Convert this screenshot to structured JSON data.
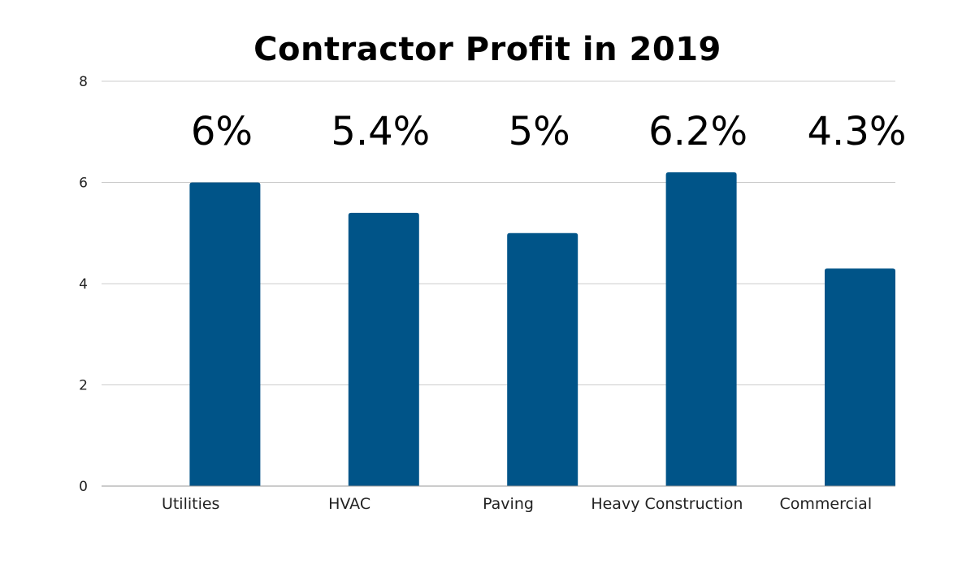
{
  "chart_data": {
    "type": "bar",
    "title": "Contractor Profit in 2019",
    "xlabel": "",
    "ylabel": "",
    "categories": [
      "Utilities",
      "HVAC",
      "Paving",
      "Heavy Construction",
      "Commercial"
    ],
    "values": [
      6,
      5.4,
      5,
      6.2,
      4.3
    ],
    "data_labels": [
      "6%",
      "5.4%",
      "5%",
      "6.2%",
      "4.3%"
    ],
    "ylim": [
      0,
      8
    ],
    "yticks": [
      "0",
      "2",
      "4",
      "6",
      "8"
    ],
    "grid": true,
    "legend": "none",
    "colors": {
      "bar": "#005488",
      "grid": "#cccccc",
      "axis": "#999999"
    }
  }
}
